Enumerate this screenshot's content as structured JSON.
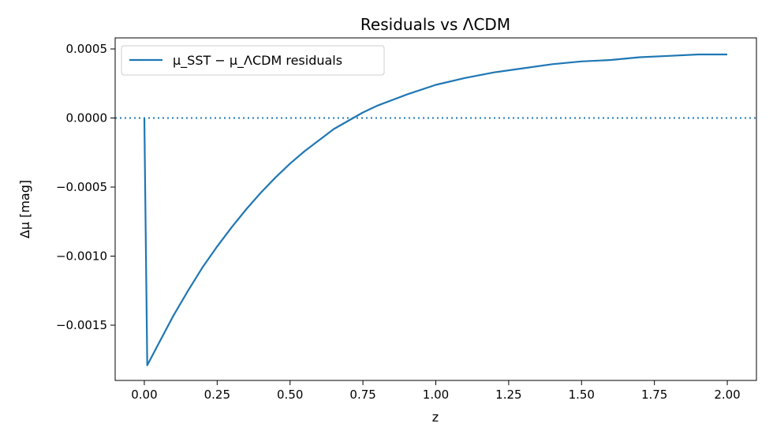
{
  "chart_data": {
    "type": "line",
    "title": "Residuals vs ΛCDM",
    "xlabel": "z",
    "ylabel": "Δμ [mag]",
    "xlim": [
      -0.1,
      2.1
    ],
    "ylim": [
      -0.0019,
      0.00058
    ],
    "x_ticks": [
      0.0,
      0.25,
      0.5,
      0.75,
      1.0,
      1.25,
      1.5,
      1.75,
      2.0
    ],
    "x_tick_labels": [
      "0.00",
      "0.25",
      "0.50",
      "0.75",
      "1.00",
      "1.25",
      "1.50",
      "1.75",
      "2.00"
    ],
    "y_ticks": [
      0.0005,
      0.0,
      -0.0005,
      -0.001,
      -0.0015
    ],
    "y_tick_labels": [
      "0.0005",
      "0.0000",
      "−0.0005",
      "−0.0010",
      "−0.0015"
    ],
    "legend_placement": "top-left",
    "reference_line": {
      "y": 0.0,
      "style": "dotted",
      "color": "#1f77b4"
    },
    "series": [
      {
        "name": "μ_SST − μ_ΛCDM residuals",
        "color": "#1f77b4",
        "x": [
          0.0,
          0.01,
          0.05,
          0.1,
          0.15,
          0.2,
          0.25,
          0.3,
          0.35,
          0.4,
          0.45,
          0.5,
          0.55,
          0.6,
          0.65,
          0.7,
          0.75,
          0.8,
          0.9,
          1.0,
          1.1,
          1.2,
          1.3,
          1.4,
          1.5,
          1.6,
          1.7,
          1.8,
          1.9,
          2.0
        ],
        "y": [
          0.0,
          -0.00179,
          -0.00163,
          -0.00143,
          -0.00125,
          -0.00108,
          -0.00093,
          -0.00079,
          -0.00066,
          -0.00054,
          -0.00043,
          -0.00033,
          -0.00024,
          -0.00016,
          -8e-05,
          -2e-05,
          4e-05,
          9e-05,
          0.00017,
          0.00024,
          0.00029,
          0.00033,
          0.00036,
          0.00039,
          0.00041,
          0.00042,
          0.00044,
          0.00045,
          0.00046,
          0.00046
        ]
      }
    ]
  }
}
